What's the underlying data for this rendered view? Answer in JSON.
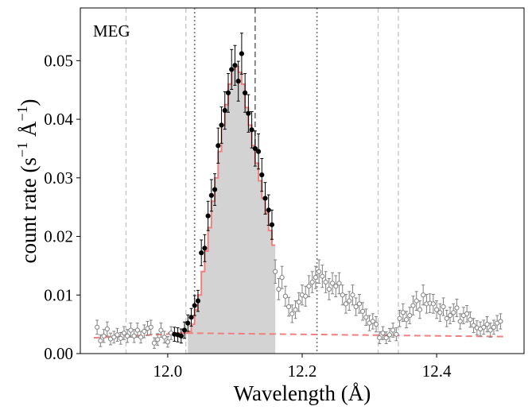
{
  "chart_data": {
    "type": "scatter",
    "title": "",
    "panel_label": "MEG",
    "xlabel": "Wavelength (Å)",
    "ylabel_parts": {
      "main": "count rate (s",
      "exp1": "−1",
      "unit": " Å",
      "exp2": "−1",
      "close": ")"
    },
    "xlim": [
      11.87,
      12.53
    ],
    "ylim": [
      0.0,
      0.059
    ],
    "x_ticks": [
      {
        "value": 12.0,
        "label": "12.0"
      },
      {
        "value": 12.2,
        "label": "12.2"
      },
      {
        "value": 12.4,
        "label": "12.4"
      }
    ],
    "y_ticks": [
      {
        "value": 0.0,
        "label": "0.00"
      },
      {
        "value": 0.01,
        "label": "0.01"
      },
      {
        "value": 0.02,
        "label": "0.02"
      },
      {
        "value": 0.03,
        "label": "0.03"
      },
      {
        "value": 0.04,
        "label": "0.04"
      },
      {
        "value": 0.05,
        "label": "0.05"
      }
    ],
    "reference_lines": {
      "light_dashed": [
        11.938,
        12.027,
        12.313,
        12.343
      ],
      "dotted": [
        12.04,
        12.222
      ],
      "dark_dashed": [
        12.13
      ]
    },
    "colors": {
      "fit": "#f08080",
      "fill": "#d3d3d3",
      "fit_points": "#000000",
      "other_points": "#808080"
    },
    "fit_points": [
      {
        "x": 12.01,
        "y": 0.0033,
        "err": 0.0012
      },
      {
        "x": 12.015,
        "y": 0.0032,
        "err": 0.0012
      },
      {
        "x": 12.02,
        "y": 0.003,
        "err": 0.0012
      },
      {
        "x": 12.025,
        "y": 0.004,
        "err": 0.0014
      },
      {
        "x": 12.03,
        "y": 0.0052,
        "err": 0.0014
      },
      {
        "x": 12.035,
        "y": 0.0062,
        "err": 0.0015
      },
      {
        "x": 12.04,
        "y": 0.0082,
        "err": 0.0017
      },
      {
        "x": 12.045,
        "y": 0.009,
        "err": 0.0018
      },
      {
        "x": 12.05,
        "y": 0.0172,
        "err": 0.0022
      },
      {
        "x": 12.055,
        "y": 0.018,
        "err": 0.0023
      },
      {
        "x": 12.06,
        "y": 0.0235,
        "err": 0.0025
      },
      {
        "x": 12.065,
        "y": 0.027,
        "err": 0.0027
      },
      {
        "x": 12.07,
        "y": 0.028,
        "err": 0.0027
      },
      {
        "x": 12.075,
        "y": 0.0355,
        "err": 0.003
      },
      {
        "x": 12.08,
        "y": 0.039,
        "err": 0.0031
      },
      {
        "x": 12.085,
        "y": 0.0415,
        "err": 0.0032
      },
      {
        "x": 12.09,
        "y": 0.0445,
        "err": 0.0033
      },
      {
        "x": 12.095,
        "y": 0.0485,
        "err": 0.0034
      },
      {
        "x": 12.1,
        "y": 0.0492,
        "err": 0.0034
      },
      {
        "x": 12.105,
        "y": 0.0465,
        "err": 0.0034
      },
      {
        "x": 12.11,
        "y": 0.0512,
        "err": 0.0035
      },
      {
        "x": 12.115,
        "y": 0.0445,
        "err": 0.0033
      },
      {
        "x": 12.12,
        "y": 0.041,
        "err": 0.0032
      },
      {
        "x": 12.125,
        "y": 0.0382,
        "err": 0.0031
      },
      {
        "x": 12.13,
        "y": 0.035,
        "err": 0.003
      },
      {
        "x": 12.135,
        "y": 0.0345,
        "err": 0.003
      },
      {
        "x": 12.14,
        "y": 0.0305,
        "err": 0.0028
      },
      {
        "x": 12.145,
        "y": 0.0265,
        "err": 0.0027
      },
      {
        "x": 12.15,
        "y": 0.0245,
        "err": 0.0026
      },
      {
        "x": 12.155,
        "y": 0.022,
        "err": 0.0025
      }
    ],
    "other_points": [
      {
        "x": 11.895,
        "y": 0.0045,
        "err": 0.0012
      },
      {
        "x": 11.9,
        "y": 0.0022,
        "err": 0.001
      },
      {
        "x": 11.905,
        "y": 0.003,
        "err": 0.0011
      },
      {
        "x": 11.91,
        "y": 0.0042,
        "err": 0.0012
      },
      {
        "x": 11.915,
        "y": 0.0025,
        "err": 0.001
      },
      {
        "x": 11.92,
        "y": 0.0028,
        "err": 0.001
      },
      {
        "x": 11.925,
        "y": 0.0032,
        "err": 0.0011
      },
      {
        "x": 11.93,
        "y": 0.0026,
        "err": 0.001
      },
      {
        "x": 11.935,
        "y": 0.0035,
        "err": 0.0011
      },
      {
        "x": 11.94,
        "y": 0.003,
        "err": 0.0011
      },
      {
        "x": 11.945,
        "y": 0.004,
        "err": 0.0012
      },
      {
        "x": 11.95,
        "y": 0.003,
        "err": 0.0011
      },
      {
        "x": 11.955,
        "y": 0.004,
        "err": 0.0012
      },
      {
        "x": 11.96,
        "y": 0.0028,
        "err": 0.001
      },
      {
        "x": 11.965,
        "y": 0.0038,
        "err": 0.0011
      },
      {
        "x": 11.97,
        "y": 0.0043,
        "err": 0.0012
      },
      {
        "x": 11.975,
        "y": 0.0045,
        "err": 0.0012
      },
      {
        "x": 11.98,
        "y": 0.0018,
        "err": 0.0009
      },
      {
        "x": 11.985,
        "y": 0.0024,
        "err": 0.001
      },
      {
        "x": 11.99,
        "y": 0.004,
        "err": 0.0012
      },
      {
        "x": 11.995,
        "y": 0.0028,
        "err": 0.001
      },
      {
        "x": 12.0,
        "y": 0.002,
        "err": 0.0009
      },
      {
        "x": 12.005,
        "y": 0.0035,
        "err": 0.0011
      },
      {
        "x": 12.16,
        "y": 0.014,
        "err": 0.002
      },
      {
        "x": 12.165,
        "y": 0.011,
        "err": 0.0018
      },
      {
        "x": 12.17,
        "y": 0.013,
        "err": 0.0019
      },
      {
        "x": 12.175,
        "y": 0.0098,
        "err": 0.0017
      },
      {
        "x": 12.18,
        "y": 0.008,
        "err": 0.0016
      },
      {
        "x": 12.185,
        "y": 0.0068,
        "err": 0.0015
      },
      {
        "x": 12.19,
        "y": 0.0075,
        "err": 0.0015
      },
      {
        "x": 12.195,
        "y": 0.0088,
        "err": 0.0016
      },
      {
        "x": 12.2,
        "y": 0.01,
        "err": 0.0017
      },
      {
        "x": 12.205,
        "y": 0.0098,
        "err": 0.0017
      },
      {
        "x": 12.21,
        "y": 0.0115,
        "err": 0.0018
      },
      {
        "x": 12.215,
        "y": 0.0122,
        "err": 0.0018
      },
      {
        "x": 12.22,
        "y": 0.013,
        "err": 0.0019
      },
      {
        "x": 12.225,
        "y": 0.014,
        "err": 0.002
      },
      {
        "x": 12.23,
        "y": 0.0132,
        "err": 0.0019
      },
      {
        "x": 12.235,
        "y": 0.0122,
        "err": 0.0018
      },
      {
        "x": 12.24,
        "y": 0.011,
        "err": 0.0018
      },
      {
        "x": 12.245,
        "y": 0.012,
        "err": 0.0018
      },
      {
        "x": 12.25,
        "y": 0.0115,
        "err": 0.0018
      },
      {
        "x": 12.255,
        "y": 0.012,
        "err": 0.0018
      },
      {
        "x": 12.26,
        "y": 0.01,
        "err": 0.0017
      },
      {
        "x": 12.265,
        "y": 0.0085,
        "err": 0.0016
      },
      {
        "x": 12.27,
        "y": 0.009,
        "err": 0.0016
      },
      {
        "x": 12.275,
        "y": 0.01,
        "err": 0.0017
      },
      {
        "x": 12.28,
        "y": 0.008,
        "err": 0.0015
      },
      {
        "x": 12.285,
        "y": 0.0085,
        "err": 0.0016
      },
      {
        "x": 12.29,
        "y": 0.0072,
        "err": 0.0015
      },
      {
        "x": 12.295,
        "y": 0.0062,
        "err": 0.0014
      },
      {
        "x": 12.3,
        "y": 0.0052,
        "err": 0.0013
      },
      {
        "x": 12.305,
        "y": 0.0055,
        "err": 0.0013
      },
      {
        "x": 12.31,
        "y": 0.005,
        "err": 0.0013
      },
      {
        "x": 12.315,
        "y": 0.0027,
        "err": 0.001
      },
      {
        "x": 12.32,
        "y": 0.0035,
        "err": 0.0011
      },
      {
        "x": 12.325,
        "y": 0.0027,
        "err": 0.001
      },
      {
        "x": 12.33,
        "y": 0.0032,
        "err": 0.0011
      },
      {
        "x": 12.335,
        "y": 0.004,
        "err": 0.0012
      },
      {
        "x": 12.34,
        "y": 0.0033,
        "err": 0.0011
      },
      {
        "x": 12.345,
        "y": 0.006,
        "err": 0.0014
      },
      {
        "x": 12.35,
        "y": 0.007,
        "err": 0.0015
      },
      {
        "x": 12.355,
        "y": 0.0058,
        "err": 0.0014
      },
      {
        "x": 12.36,
        "y": 0.0065,
        "err": 0.0014
      },
      {
        "x": 12.365,
        "y": 0.0082,
        "err": 0.0016
      },
      {
        "x": 12.37,
        "y": 0.009,
        "err": 0.0016
      },
      {
        "x": 12.375,
        "y": 0.0075,
        "err": 0.0015
      },
      {
        "x": 12.38,
        "y": 0.01,
        "err": 0.0017
      },
      {
        "x": 12.385,
        "y": 0.0085,
        "err": 0.0016
      },
      {
        "x": 12.39,
        "y": 0.0086,
        "err": 0.0016
      },
      {
        "x": 12.395,
        "y": 0.0085,
        "err": 0.0016
      },
      {
        "x": 12.4,
        "y": 0.0075,
        "err": 0.0015
      },
      {
        "x": 12.405,
        "y": 0.007,
        "err": 0.0015
      },
      {
        "x": 12.41,
        "y": 0.008,
        "err": 0.0015
      },
      {
        "x": 12.415,
        "y": 0.006,
        "err": 0.0014
      },
      {
        "x": 12.42,
        "y": 0.0065,
        "err": 0.0014
      },
      {
        "x": 12.425,
        "y": 0.007,
        "err": 0.0015
      },
      {
        "x": 12.43,
        "y": 0.0078,
        "err": 0.0015
      },
      {
        "x": 12.435,
        "y": 0.0055,
        "err": 0.0013
      },
      {
        "x": 12.44,
        "y": 0.0065,
        "err": 0.0014
      },
      {
        "x": 12.445,
        "y": 0.0068,
        "err": 0.0014
      },
      {
        "x": 12.45,
        "y": 0.0058,
        "err": 0.0013
      },
      {
        "x": 12.455,
        "y": 0.0048,
        "err": 0.0012
      },
      {
        "x": 12.46,
        "y": 0.0044,
        "err": 0.0012
      },
      {
        "x": 12.465,
        "y": 0.0042,
        "err": 0.0012
      },
      {
        "x": 12.47,
        "y": 0.0045,
        "err": 0.0012
      },
      {
        "x": 12.475,
        "y": 0.005,
        "err": 0.0013
      },
      {
        "x": 12.48,
        "y": 0.004,
        "err": 0.0012
      },
      {
        "x": 12.485,
        "y": 0.0045,
        "err": 0.0012
      },
      {
        "x": 12.49,
        "y": 0.0052,
        "err": 0.0013
      },
      {
        "x": 12.495,
        "y": 0.0055,
        "err": 0.0013
      }
    ],
    "continuum": {
      "x": [
        11.89,
        12.03,
        12.5
      ],
      "y": [
        0.0027,
        0.0035,
        0.0029
      ]
    },
    "fit_model": {
      "x": [
        12.0,
        12.03,
        12.035,
        12.04,
        12.045,
        12.05,
        12.055,
        12.06,
        12.065,
        12.07,
        12.075,
        12.08,
        12.085,
        12.09,
        12.095,
        12.1,
        12.105,
        12.11,
        12.115,
        12.12,
        12.125,
        12.13,
        12.135,
        12.14,
        12.145,
        12.15,
        12.155,
        12.16
      ],
      "y": [
        0.0035,
        0.0038,
        0.005,
        0.0075,
        0.01,
        0.014,
        0.0175,
        0.0215,
        0.026,
        0.03,
        0.0345,
        0.039,
        0.0425,
        0.046,
        0.0485,
        0.049,
        0.048,
        0.046,
        0.042,
        0.039,
        0.0355,
        0.0325,
        0.0295,
        0.0265,
        0.024,
        0.021,
        0.0185,
        0.0185
      ]
    }
  }
}
